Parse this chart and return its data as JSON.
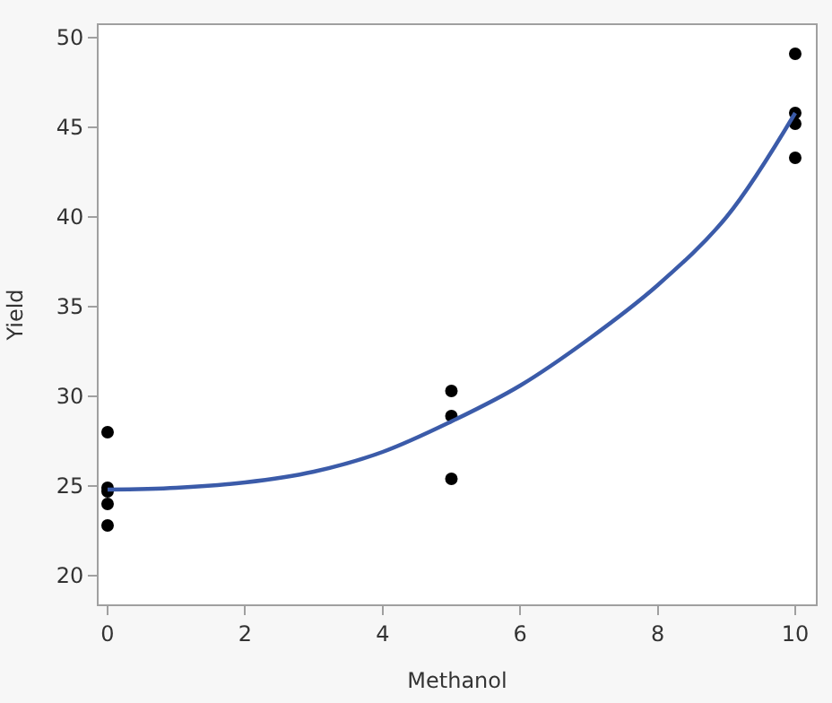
{
  "chart_data": {
    "type": "scatter",
    "xlabel": "Methanol",
    "ylabel": "Yield",
    "xlim": [
      -0.13,
      10.3
    ],
    "ylim": [
      18.4,
      50.7
    ],
    "xticks": [
      0,
      2,
      4,
      6,
      8,
      10
    ],
    "yticks": [
      20,
      25,
      30,
      35,
      40,
      45,
      50
    ],
    "grid": false,
    "series": [
      {
        "marker": "circle",
        "color": "#000000",
        "x": [
          0,
          0,
          0,
          0,
          0,
          5,
          5,
          5,
          10,
          10,
          10,
          10
        ],
        "values": [
          28.0,
          24.9,
          24.7,
          24.0,
          22.8,
          30.3,
          28.9,
          25.4,
          49.1,
          45.8,
          45.2,
          43.3
        ]
      },
      {
        "type": "line",
        "marker": "none",
        "line_style": "solid",
        "color": "#3b5ba9",
        "x": [
          0,
          1,
          2,
          3,
          4,
          5,
          6,
          7,
          8,
          9,
          10
        ],
        "values": [
          24.8,
          24.9,
          25.2,
          25.8,
          26.9,
          28.6,
          30.6,
          33.2,
          36.2,
          40.0,
          45.8
        ]
      }
    ]
  }
}
